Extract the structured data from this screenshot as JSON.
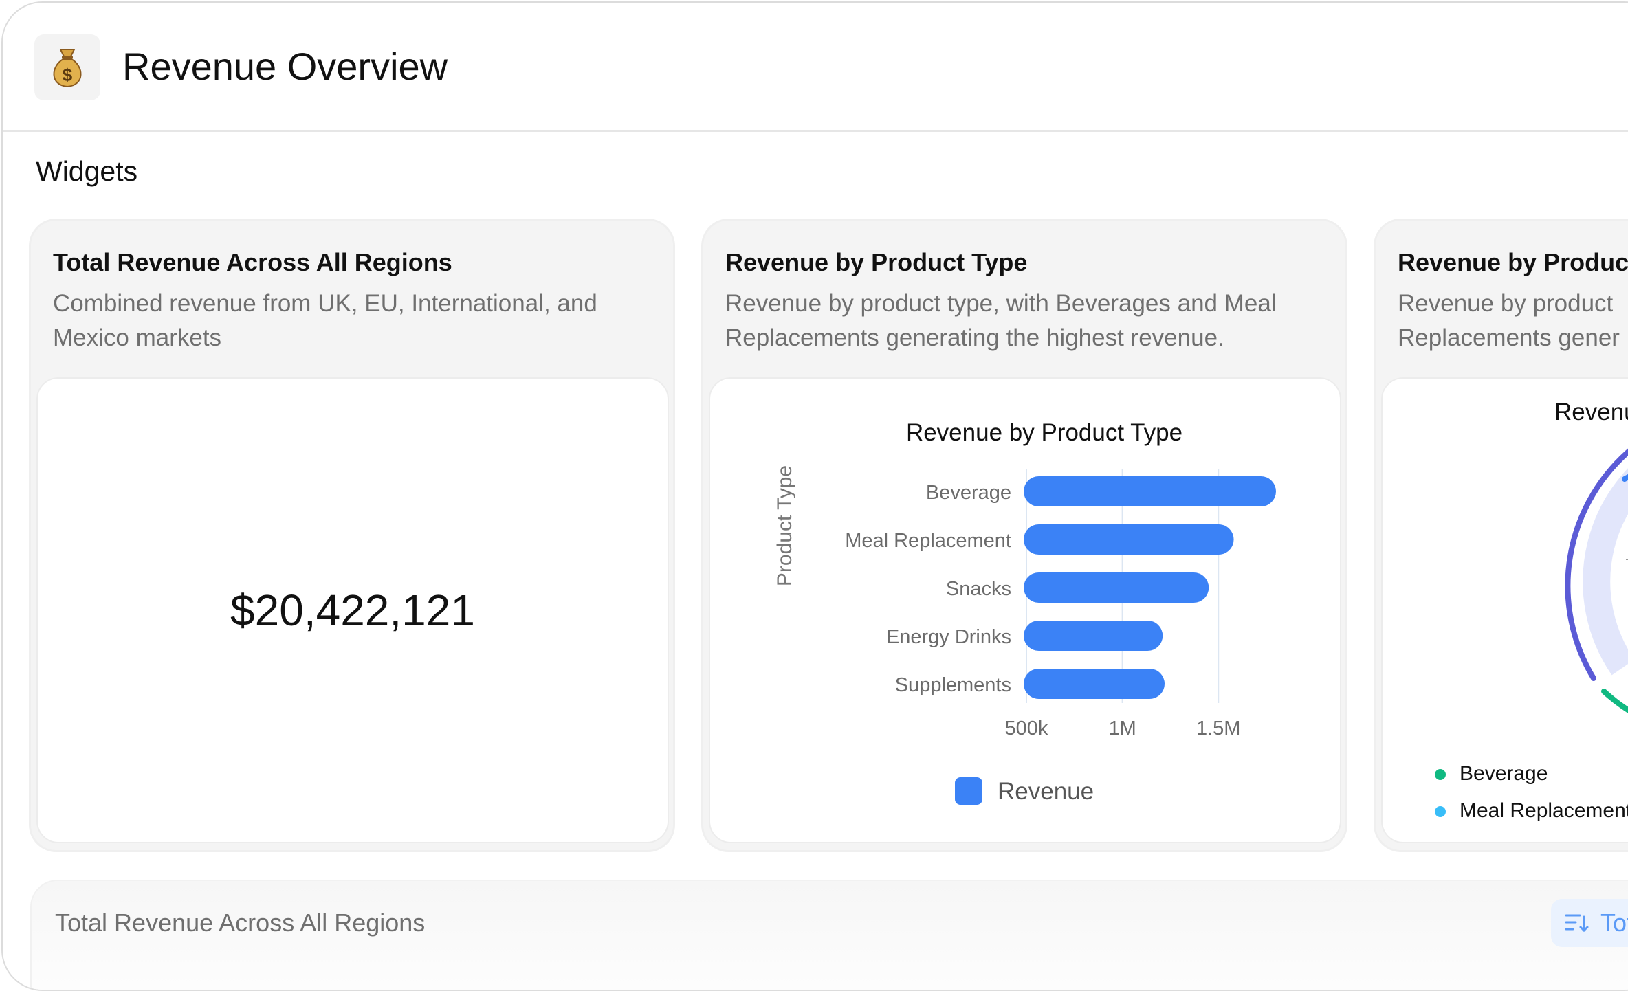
{
  "header": {
    "title": "Revenue Overview",
    "icon": "money-bag-icon"
  },
  "section": {
    "label": "Widgets"
  },
  "cards": [
    {
      "title": "Total Revenue Across All Regions",
      "description": "Combined revenue from UK, EU, International, and Mexico markets",
      "metric": "$20,422,121"
    },
    {
      "title": "Revenue by Product Type",
      "description": "Revenue by product type, with Beverages and Meal Replacements generating the highest revenue."
    },
    {
      "title": "Revenue by Product",
      "description_line1": "Revenue by product",
      "description_line2": "Replacements gener",
      "chart_title": "Revenu",
      "legend": [
        "Beverage",
        "Meal Replacement"
      ]
    }
  ],
  "bottom": {
    "title": "Total Revenue Across All Regions",
    "sort_label": "Tot"
  },
  "colors": {
    "bar": "#3b82f6",
    "arc_purple": "#5b5bd6",
    "arc_green": "#10b981",
    "dot_blue": "#38bdf8"
  },
  "chart_data": [
    {
      "type": "bar",
      "orientation": "horizontal",
      "title": "Revenue by Product Type",
      "ylabel": "Product Type",
      "xlabel": "",
      "categories": [
        "Beverage",
        "Meal Replacement",
        "Snacks",
        "Energy Drinks",
        "Supplements"
      ],
      "series": [
        {
          "name": "Revenue",
          "values": [
            1800000,
            1580000,
            1450000,
            1210000,
            1220000
          ]
        }
      ],
      "x_ticks": [
        500000,
        1000000,
        1500000
      ],
      "x_tick_labels": [
        "500k",
        "1M",
        "1.5M"
      ],
      "xlim": [
        500000,
        1800000
      ],
      "legend_position": "bottom"
    }
  ]
}
